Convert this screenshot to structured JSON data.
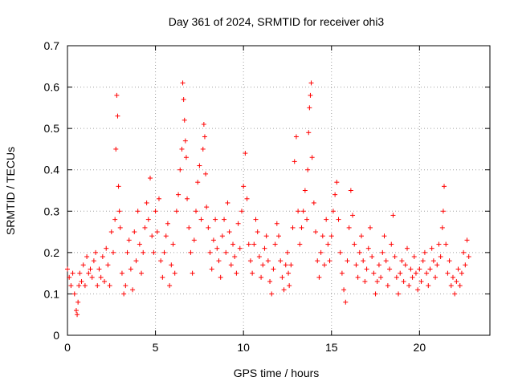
{
  "chart_data": {
    "type": "scatter",
    "title": "Day 361 of 2024, SRMTID for receiver ohi3",
    "xlabel": "GPS time / hours",
    "ylabel": "SRMTID / TECUs",
    "xlim": [
      0,
      24
    ],
    "ylim": [
      0,
      0.7
    ],
    "xticks": [
      0,
      5,
      10,
      15,
      20
    ],
    "xtick_labels": [
      "0",
      "5",
      "10",
      "15",
      "20"
    ],
    "yticks": [
      0,
      0.1,
      0.2,
      0.3,
      0.4,
      0.5,
      0.6,
      0.7
    ],
    "ytick_labels": [
      "0",
      "0.1",
      "0.2",
      "0.3",
      "0.4",
      "0.5",
      "0.6",
      "0.7"
    ],
    "grid": true,
    "marker": "+",
    "series": [
      {
        "name": "SRMTID",
        "color": "#ff0000",
        "x": [
          0.0,
          0.1,
          0.2,
          0.3,
          0.4,
          0.5,
          0.55,
          0.6,
          0.65,
          0.7,
          0.8,
          0.9,
          1.0,
          1.1,
          1.2,
          1.3,
          1.4,
          1.5,
          1.6,
          1.7,
          1.8,
          1.9,
          2.0,
          2.1,
          2.2,
          2.3,
          2.4,
          2.5,
          2.6,
          2.7,
          2.75,
          2.8,
          2.85,
          2.9,
          2.95,
          3.0,
          3.1,
          3.2,
          3.3,
          3.4,
          3.5,
          3.6,
          3.7,
          3.8,
          3.9,
          4.0,
          4.1,
          4.2,
          4.3,
          4.4,
          4.5,
          4.6,
          4.7,
          4.8,
          4.9,
          5.0,
          5.1,
          5.2,
          5.3,
          5.4,
          5.5,
          5.6,
          5.7,
          5.8,
          5.9,
          6.0,
          6.1,
          6.2,
          6.3,
          6.4,
          6.5,
          6.55,
          6.6,
          6.65,
          6.7,
          6.75,
          6.8,
          6.9,
          7.0,
          7.1,
          7.2,
          7.3,
          7.4,
          7.5,
          7.6,
          7.7,
          7.75,
          7.8,
          7.85,
          7.9,
          8.0,
          8.1,
          8.2,
          8.3,
          8.4,
          8.5,
          8.6,
          8.7,
          8.8,
          8.9,
          9.0,
          9.1,
          9.2,
          9.3,
          9.4,
          9.5,
          9.6,
          9.7,
          9.8,
          9.9,
          10.0,
          10.1,
          10.2,
          10.3,
          10.4,
          10.5,
          10.6,
          10.7,
          10.8,
          10.9,
          11.0,
          11.1,
          11.2,
          11.3,
          11.4,
          11.5,
          11.6,
          11.7,
          11.8,
          11.9,
          12.0,
          12.1,
          12.2,
          12.3,
          12.4,
          12.5,
          12.55,
          12.6,
          12.7,
          12.8,
          12.9,
          13.0,
          13.1,
          13.2,
          13.3,
          13.4,
          13.5,
          13.6,
          13.65,
          13.7,
          13.75,
          13.8,
          13.85,
          13.9,
          14.0,
          14.1,
          14.2,
          14.3,
          14.4,
          14.5,
          14.6,
          14.7,
          14.8,
          14.9,
          15.0,
          15.1,
          15.2,
          15.3,
          15.4,
          15.5,
          15.6,
          15.7,
          15.8,
          15.9,
          16.0,
          16.1,
          16.2,
          16.3,
          16.4,
          16.5,
          16.6,
          16.7,
          16.8,
          16.9,
          17.0,
          17.1,
          17.2,
          17.3,
          17.4,
          17.5,
          17.6,
          17.7,
          17.8,
          17.9,
          18.0,
          18.1,
          18.2,
          18.3,
          18.4,
          18.5,
          18.6,
          18.7,
          18.8,
          18.9,
          19.0,
          19.1,
          19.2,
          19.3,
          19.4,
          19.5,
          19.6,
          19.7,
          19.8,
          19.9,
          20.0,
          20.1,
          20.2,
          20.3,
          20.4,
          20.5,
          20.6,
          20.7,
          20.8,
          20.9,
          21.0,
          21.1,
          21.2,
          21.3,
          21.35,
          21.4,
          21.5,
          21.6,
          21.7,
          21.8,
          21.9,
          22.0,
          22.1,
          22.2,
          22.3,
          22.4,
          22.5,
          22.6,
          22.7,
          22.8
        ],
        "values": [
          0.16,
          0.14,
          0.12,
          0.15,
          0.1,
          0.06,
          0.05,
          0.08,
          0.12,
          0.15,
          0.13,
          0.17,
          0.12,
          0.19,
          0.15,
          0.16,
          0.14,
          0.18,
          0.2,
          0.12,
          0.16,
          0.14,
          0.19,
          0.13,
          0.21,
          0.17,
          0.12,
          0.25,
          0.2,
          0.28,
          0.45,
          0.58,
          0.53,
          0.36,
          0.3,
          0.26,
          0.15,
          0.1,
          0.12,
          0.2,
          0.23,
          0.16,
          0.11,
          0.25,
          0.18,
          0.3,
          0.22,
          0.15,
          0.2,
          0.26,
          0.32,
          0.28,
          0.38,
          0.24,
          0.2,
          0.3,
          0.25,
          0.33,
          0.18,
          0.14,
          0.2,
          0.24,
          0.27,
          0.12,
          0.17,
          0.22,
          0.15,
          0.3,
          0.34,
          0.4,
          0.45,
          0.61,
          0.57,
          0.52,
          0.47,
          0.43,
          0.33,
          0.26,
          0.2,
          0.15,
          0.23,
          0.3,
          0.37,
          0.41,
          0.28,
          0.45,
          0.51,
          0.48,
          0.39,
          0.31,
          0.26,
          0.2,
          0.16,
          0.23,
          0.28,
          0.21,
          0.18,
          0.14,
          0.24,
          0.28,
          0.2,
          0.32,
          0.25,
          0.17,
          0.22,
          0.19,
          0.15,
          0.27,
          0.21,
          0.3,
          0.36,
          0.44,
          0.33,
          0.22,
          0.18,
          0.15,
          0.22,
          0.28,
          0.25,
          0.19,
          0.14,
          0.17,
          0.21,
          0.24,
          0.18,
          0.13,
          0.1,
          0.16,
          0.22,
          0.27,
          0.24,
          0.18,
          0.14,
          0.11,
          0.17,
          0.2,
          0.15,
          0.12,
          0.17,
          0.26,
          0.42,
          0.48,
          0.3,
          0.22,
          0.26,
          0.3,
          0.35,
          0.28,
          0.4,
          0.49,
          0.55,
          0.58,
          0.61,
          0.43,
          0.32,
          0.25,
          0.18,
          0.14,
          0.2,
          0.24,
          0.17,
          0.28,
          0.22,
          0.18,
          0.24,
          0.3,
          0.34,
          0.37,
          0.28,
          0.2,
          0.15,
          0.11,
          0.08,
          0.18,
          0.26,
          0.35,
          0.29,
          0.22,
          0.17,
          0.14,
          0.2,
          0.24,
          0.18,
          0.13,
          0.16,
          0.21,
          0.26,
          0.19,
          0.15,
          0.1,
          0.13,
          0.17,
          0.14,
          0.2,
          0.24,
          0.18,
          0.12,
          0.16,
          0.22,
          0.29,
          0.19,
          0.14,
          0.1,
          0.15,
          0.18,
          0.13,
          0.17,
          0.21,
          0.12,
          0.16,
          0.14,
          0.19,
          0.15,
          0.11,
          0.16,
          0.13,
          0.18,
          0.2,
          0.15,
          0.12,
          0.16,
          0.21,
          0.18,
          0.14,
          0.17,
          0.22,
          0.19,
          0.26,
          0.3,
          0.36,
          0.22,
          0.15,
          0.18,
          0.12,
          0.14,
          0.1,
          0.13,
          0.16,
          0.12,
          0.15,
          0.2,
          0.17,
          0.23,
          0.19
        ]
      }
    ]
  }
}
